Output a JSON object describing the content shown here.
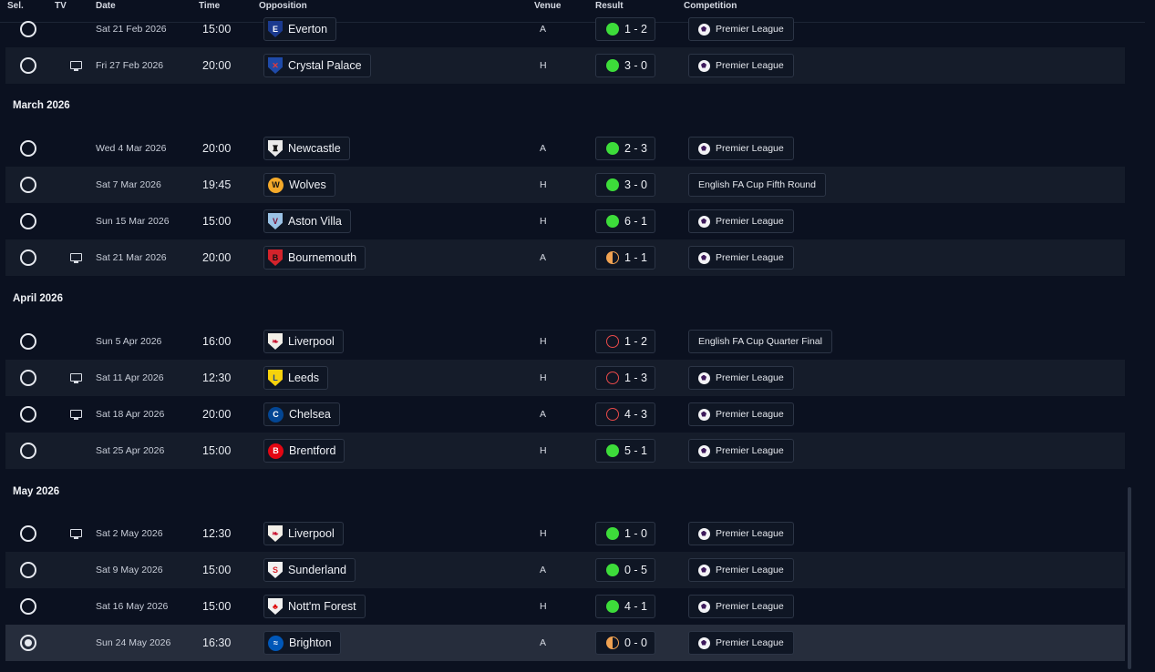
{
  "header": {
    "sel": "Sel.",
    "tv": "TV",
    "date": "Date",
    "time": "Time",
    "opposition": "Opposition",
    "venue": "Venue",
    "result": "Result",
    "competition": "Competition"
  },
  "colors": {
    "win": "#3ddc3a",
    "loss": "#e94a4a",
    "draw": "#f0a252",
    "background": "#0b1120"
  },
  "months": [
    "March 2026",
    "April 2026",
    "May 2026"
  ],
  "fixtures": [
    {
      "tv": false,
      "date": "Sat 21 Feb 2026",
      "time": "15:00",
      "opp": "Everton",
      "venue": "A",
      "result": "1 - 2",
      "outcome": "W",
      "comp": "Premier League",
      "comp_icon": "premier-league-icon",
      "crest_icon": "everton-crest-icon"
    },
    {
      "tv": true,
      "date": "Fri 27 Feb 2026",
      "time": "20:00",
      "opp": "Crystal Palace",
      "venue": "H",
      "result": "3 - 0",
      "outcome": "W",
      "comp": "Premier League",
      "comp_icon": "premier-league-icon",
      "crest_icon": "crystal-palace-crest-icon"
    },
    {
      "tv": false,
      "date": "Wed 4 Mar 2026",
      "time": "20:00",
      "opp": "Newcastle",
      "venue": "A",
      "result": "2 - 3",
      "outcome": "W",
      "comp": "Premier League",
      "comp_icon": "premier-league-icon",
      "crest_icon": "newcastle-crest-icon"
    },
    {
      "tv": false,
      "date": "Sat 7 Mar 2026",
      "time": "19:45",
      "opp": "Wolves",
      "venue": "H",
      "result": "3 - 0",
      "outcome": "W",
      "comp": "English FA Cup Fifth Round",
      "comp_icon": "",
      "crest_icon": "wolves-crest-icon"
    },
    {
      "tv": false,
      "date": "Sun 15 Mar 2026",
      "time": "15:00",
      "opp": "Aston Villa",
      "venue": "H",
      "result": "6 - 1",
      "outcome": "W",
      "comp": "Premier League",
      "comp_icon": "premier-league-icon",
      "crest_icon": "aston-villa-crest-icon"
    },
    {
      "tv": true,
      "date": "Sat 21 Mar 2026",
      "time": "20:00",
      "opp": "Bournemouth",
      "venue": "A",
      "result": "1 - 1",
      "outcome": "D",
      "comp": "Premier League",
      "comp_icon": "premier-league-icon",
      "crest_icon": "bournemouth-crest-icon"
    },
    {
      "tv": false,
      "date": "Sun 5 Apr 2026",
      "time": "16:00",
      "opp": "Liverpool",
      "venue": "H",
      "result": "1 - 2",
      "outcome": "L",
      "comp": "English FA Cup Quarter Final",
      "comp_icon": "",
      "crest_icon": "liverpool-crest-icon"
    },
    {
      "tv": true,
      "date": "Sat 11 Apr 2026",
      "time": "12:30",
      "opp": "Leeds",
      "venue": "H",
      "result": "1 - 3",
      "outcome": "L",
      "comp": "Premier League",
      "comp_icon": "premier-league-icon",
      "crest_icon": "leeds-crest-icon"
    },
    {
      "tv": true,
      "date": "Sat 18 Apr 2026",
      "time": "20:00",
      "opp": "Chelsea",
      "venue": "A",
      "result": "4 - 3",
      "outcome": "L",
      "comp": "Premier League",
      "comp_icon": "premier-league-icon",
      "crest_icon": "chelsea-crest-icon"
    },
    {
      "tv": false,
      "date": "Sat 25 Apr 2026",
      "time": "15:00",
      "opp": "Brentford",
      "venue": "H",
      "result": "5 - 1",
      "outcome": "W",
      "comp": "Premier League",
      "comp_icon": "premier-league-icon",
      "crest_icon": "brentford-crest-icon"
    },
    {
      "tv": true,
      "date": "Sat 2 May 2026",
      "time": "12:30",
      "opp": "Liverpool",
      "venue": "H",
      "result": "1 - 0",
      "outcome": "W",
      "comp": "Premier League",
      "comp_icon": "premier-league-icon",
      "crest_icon": "liverpool-crest-icon"
    },
    {
      "tv": false,
      "date": "Sat 9 May 2026",
      "time": "15:00",
      "opp": "Sunderland",
      "venue": "A",
      "result": "0 - 5",
      "outcome": "W",
      "comp": "Premier League",
      "comp_icon": "premier-league-icon",
      "crest_icon": "sunderland-crest-icon"
    },
    {
      "tv": false,
      "date": "Sat 16 May 2026",
      "time": "15:00",
      "opp": "Nott'm Forest",
      "venue": "H",
      "result": "4 - 1",
      "outcome": "W",
      "comp": "Premier League",
      "comp_icon": "premier-league-icon",
      "crest_icon": "nottm-forest-crest-icon"
    },
    {
      "tv": false,
      "date": "Sun 24 May 2026",
      "time": "16:30",
      "opp": "Brighton",
      "venue": "A",
      "result": "0 - 0",
      "outcome": "D",
      "comp": "Premier League",
      "comp_icon": "premier-league-icon",
      "crest_icon": "brighton-crest-icon",
      "selected": true
    }
  ]
}
